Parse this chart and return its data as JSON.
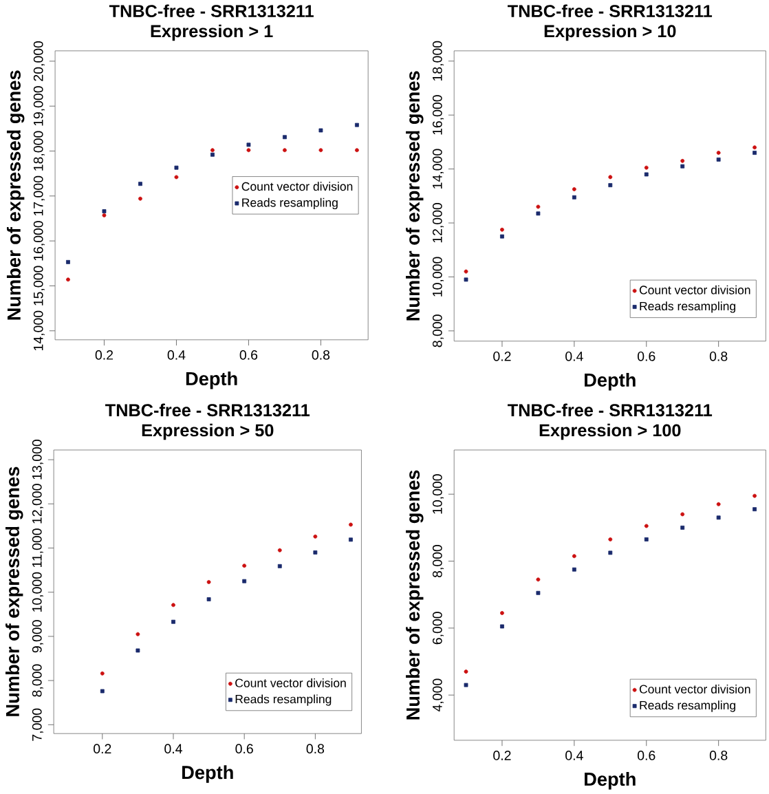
{
  "chart_data": [
    {
      "type": "scatter",
      "title": "TNBC-free - SRR1313211",
      "subtitle": "Expression > 1",
      "xlabel": "Depth",
      "ylabel": "Number of expressed genes",
      "x": [
        0.1,
        0.2,
        0.3,
        0.4,
        0.5,
        0.6,
        0.7,
        0.8,
        0.9
      ],
      "xlim": [
        0.064,
        0.931
      ],
      "xticks": [
        0.2,
        0.4,
        0.6,
        0.8
      ],
      "ylim": [
        13800,
        20230
      ],
      "yticks": [
        {
          "value": 14000,
          "label": "14,000"
        },
        {
          "value": 15000,
          "label": "15,000"
        },
        {
          "value": 16000,
          "label": "16,000"
        },
        {
          "value": 17000,
          "label": "17,000"
        },
        {
          "value": 18000,
          "label": "18,000"
        },
        {
          "value": 19000,
          "label": "19,000"
        },
        {
          "value": 20000,
          "label": "20,000"
        }
      ],
      "legend": "right",
      "grid": false,
      "series": [
        {
          "name": "Count vector division",
          "color": "#cc1111",
          "marker": "circle",
          "values": [
            15140,
            16570,
            16940,
            17420,
            18020,
            18020,
            18020,
            18020,
            18020
          ]
        },
        {
          "name": "Reads resampling",
          "color": "#1a2a6c",
          "marker": "square",
          "values": [
            15530,
            16660,
            17270,
            17630,
            17920,
            18140,
            18310,
            18460,
            18580
          ]
        }
      ]
    },
    {
      "type": "scatter",
      "title": "TNBC-free - SRR1313211",
      "subtitle": "Expression > 10",
      "xlabel": "Depth",
      "ylabel": "Number of expressed genes",
      "x": [
        0.1,
        0.2,
        0.3,
        0.4,
        0.5,
        0.6,
        0.7,
        0.8,
        0.9
      ],
      "xlim": [
        0.067,
        0.931
      ],
      "xticks": [
        0.2,
        0.4,
        0.6,
        0.8
      ],
      "ylim": [
        7620,
        18380
      ],
      "yticks": [
        {
          "value": 8000,
          "label": "8,000"
        },
        {
          "value": 10000,
          "label": "10,000"
        },
        {
          "value": 12000,
          "label": "12,000"
        },
        {
          "value": 14000,
          "label": "14,000"
        },
        {
          "value": 16000,
          "label": "16,000"
        },
        {
          "value": 18000,
          "label": "18,000"
        }
      ],
      "legend": "bottom right",
      "grid": false,
      "series": [
        {
          "name": "Count vector division",
          "color": "#cc1111",
          "marker": "circle",
          "values": [
            10200,
            11750,
            12600,
            13250,
            13700,
            14050,
            14300,
            14600,
            14800
          ]
        },
        {
          "name": "Reads resampling",
          "color": "#1a2a6c",
          "marker": "square",
          "values": [
            9900,
            11500,
            12350,
            12950,
            13400,
            13800,
            14100,
            14350,
            14600
          ]
        }
      ]
    },
    {
      "type": "scatter",
      "title": "TNBC-free - SRR1313211",
      "subtitle": "Expression > 50",
      "xlabel": "Depth",
      "ylabel": "Number of expressed genes",
      "x": [
        0.2,
        0.3,
        0.4,
        0.5,
        0.6,
        0.7,
        0.8,
        0.9
      ],
      "xlim": [
        0.063,
        0.93
      ],
      "xticks": [
        0.2,
        0.4,
        0.6,
        0.8
      ],
      "ylim": [
        6800,
        13220
      ],
      "yticks": [
        {
          "value": 7000,
          "label": "7,000"
        },
        {
          "value": 8000,
          "label": "8,000"
        },
        {
          "value": 9000,
          "label": "9,000"
        },
        {
          "value": 10000,
          "label": "10,000"
        },
        {
          "value": 11000,
          "label": "11,000"
        },
        {
          "value": 12000,
          "label": "12,000"
        },
        {
          "value": 13000,
          "label": "13,000"
        }
      ],
      "legend": "bottom right",
      "grid": false,
      "series": [
        {
          "name": "Count vector division",
          "color": "#cc1111",
          "marker": "circle",
          "values": [
            8160,
            9050,
            9710,
            10230,
            10600,
            10950,
            11260,
            11530
          ]
        },
        {
          "name": "Reads resampling",
          "color": "#1a2a6c",
          "marker": "square",
          "values": [
            7760,
            8680,
            9330,
            9840,
            10250,
            10590,
            10900,
            11190
          ]
        }
      ]
    },
    {
      "type": "scatter",
      "title": "TNBC-free - SRR1313211",
      "subtitle": "Expression > 100",
      "xlabel": "Depth",
      "ylabel": "Number of expressed genes",
      "x": [
        0.1,
        0.2,
        0.3,
        0.4,
        0.5,
        0.6,
        0.7,
        0.8,
        0.9
      ],
      "xlim": [
        0.067,
        0.931
      ],
      "xticks": [
        0.2,
        0.4,
        0.6,
        0.8
      ],
      "ylim": [
        2650,
        11320
      ],
      "yticks": [
        {
          "value": 4000,
          "label": "4,000"
        },
        {
          "value": 6000,
          "label": "6,000"
        },
        {
          "value": 8000,
          "label": "8,000"
        },
        {
          "value": 10000,
          "label": "10,000"
        }
      ],
      "legend": "bottom right",
      "grid": false,
      "series": [
        {
          "name": "Count vector division",
          "color": "#cc1111",
          "marker": "circle",
          "values": [
            4700,
            6450,
            7450,
            8150,
            8650,
            9050,
            9400,
            9700,
            9950
          ]
        },
        {
          "name": "Reads resampling",
          "color": "#1a2a6c",
          "marker": "square",
          "values": [
            4300,
            6050,
            7050,
            7750,
            8250,
            8650,
            9000,
            9300,
            9550
          ]
        }
      ]
    }
  ]
}
